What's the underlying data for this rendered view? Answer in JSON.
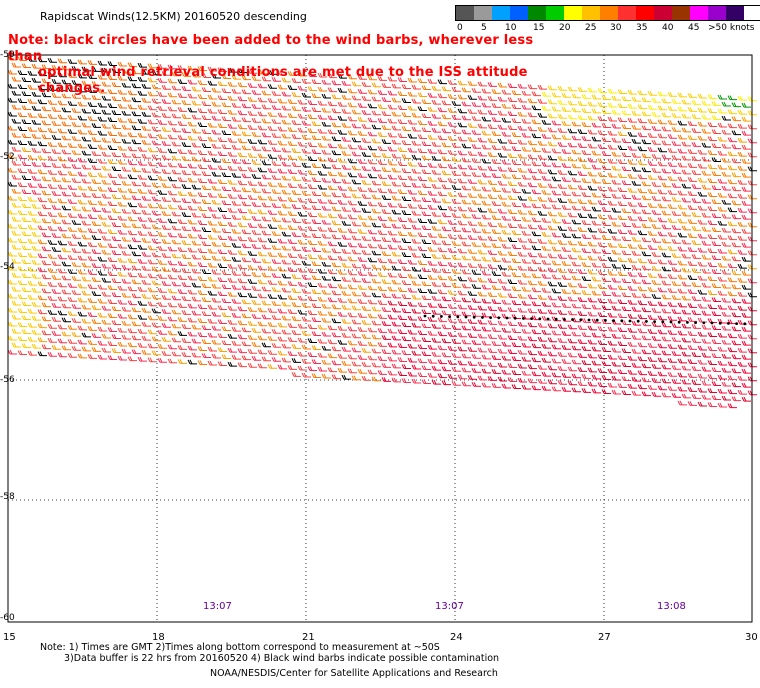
{
  "title": "Rapidscat Winds(12.5KM) 20160520 descending",
  "note_line1": "Note: black circles have been added to the wind barbs, wherever less than",
  "note_line2": "optimal wind retrieval conditions are met due to the ISS attitude changes.",
  "legend": {
    "colors": [
      "#555555",
      "#9a9a9a",
      "#00a0ff",
      "#0060ff",
      "#008800",
      "#00cc00",
      "#ffff00",
      "#ffc000",
      "#ff8000",
      "#ff3030",
      "#ff0000",
      "#cc0033",
      "#993300",
      "#ff00ff",
      "#9900cc",
      "#330066"
    ],
    "labels": [
      "0",
      "5",
      "10",
      "15",
      "20",
      "25",
      "30",
      "35",
      "40",
      "45",
      ">50 knots"
    ]
  },
  "map": {
    "lat_labels": [
      "-50",
      "-52",
      "-54",
      "-56",
      "-58",
      "-60"
    ],
    "lon_labels": [
      "15",
      "18",
      "21",
      "24",
      "27",
      "30"
    ],
    "times": [
      "13:07",
      "13:07",
      "13:08"
    ]
  },
  "footnote_line1": "Note: 1) Times are GMT 2)Times along bottom correspond to measurement at ~50S",
  "footnote_line2": "3)Data buffer is 22 hrs from 20160520 4) Black wind barbs indicate possible contamination",
  "credit": "NOAA/NESDIS/Center for Satellite Applications and Research"
}
